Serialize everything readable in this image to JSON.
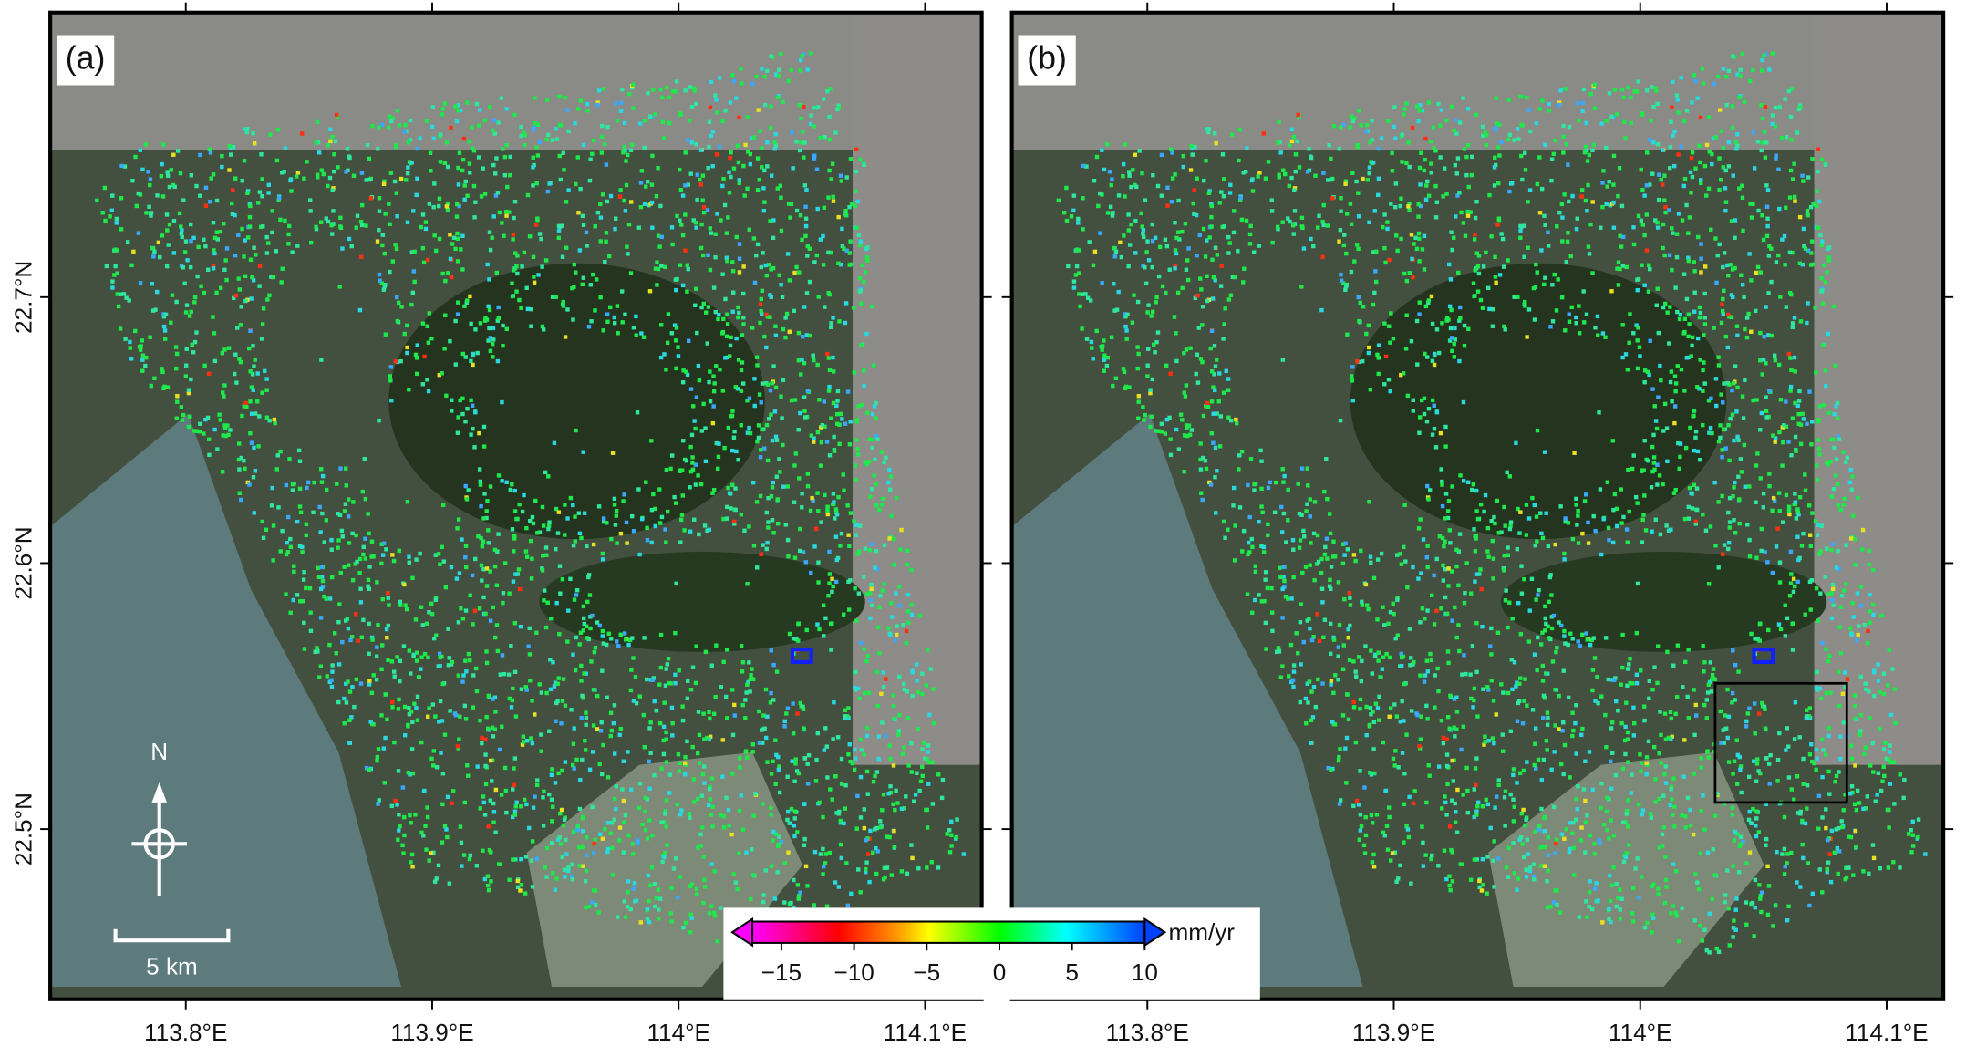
{
  "panels": [
    {
      "label": "(a)"
    },
    {
      "label": "(b)"
    }
  ],
  "map": {
    "xlim": [
      113.745,
      114.123
    ],
    "ylim": [
      22.436,
      22.807
    ],
    "xticks": [
      {
        "value": 113.8,
        "label": "113.8°E"
      },
      {
        "value": 113.9,
        "label": "113.9°E"
      },
      {
        "value": 114,
        "label": "114°E"
      },
      {
        "value": 114.1,
        "label": "114.1°E"
      }
    ],
    "yticks": [
      {
        "value": 22.5,
        "label": "22.5°N"
      },
      {
        "value": 22.6,
        "label": "22.6°N"
      },
      {
        "value": 22.7,
        "label": "22.7°N"
      }
    ]
  },
  "colorbar": {
    "clim": [
      -17,
      10
    ],
    "unit": "mm/yr",
    "ticks": [
      {
        "value": -15,
        "label": "−15"
      },
      {
        "value": -10,
        "label": "−10"
      },
      {
        "value": -5,
        "label": "−5"
      },
      0,
      5,
      10
    ]
  },
  "scale_bar": {
    "label": "5 km"
  },
  "north_arrow": {
    "label": "N"
  }
}
